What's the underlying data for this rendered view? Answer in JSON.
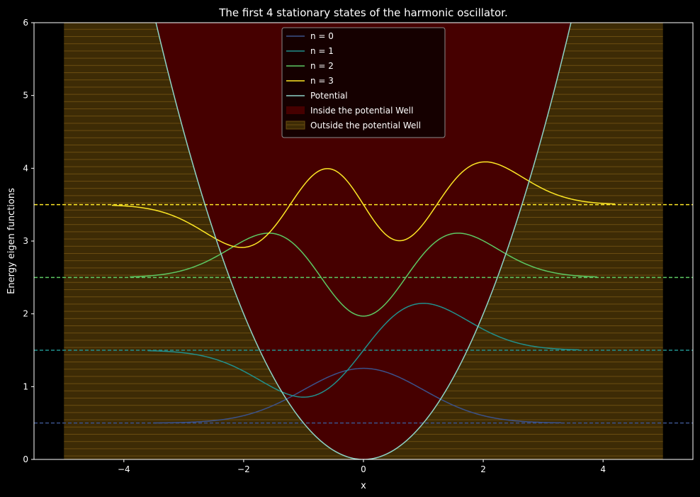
{
  "chart_data": {
    "type": "line",
    "title": "The first 4 stationary states of the harmonic oscillator.",
    "xlabel": "x",
    "ylabel": "Energy eigen functions",
    "xlim": [
      -5.5,
      5.5
    ],
    "ylim": [
      0,
      6
    ],
    "xticks": [
      -4,
      -2,
      0,
      2,
      4
    ],
    "xtick_labels": [
      "−4",
      "−2",
      "0",
      "2",
      "4"
    ],
    "yticks": [
      0,
      1,
      2,
      3,
      4,
      5,
      6
    ],
    "ytick_labels": [
      "0",
      "1",
      "2",
      "3",
      "4",
      "5",
      "6"
    ],
    "grid": false,
    "legend_placement": "upper-center",
    "background": "#000000",
    "axes_color": "#ffffff",
    "potential": {
      "name": "Potential",
      "color": "#8dd3c7",
      "formula": "x^2 / 2"
    },
    "series": [
      {
        "name": "n = 0",
        "n": 0,
        "energy": 0.5,
        "color": "#3b528b",
        "x_range": [
          -3.5,
          3.3
        ]
      },
      {
        "name": "n = 1",
        "n": 1,
        "energy": 1.5,
        "color": "#21908d",
        "x_range": [
          -3.6,
          3.6
        ]
      },
      {
        "name": "n = 2",
        "n": 2,
        "energy": 2.5,
        "color": "#5dc963",
        "x_range": [
          -3.9,
          3.9
        ]
      },
      {
        "name": "n = 3",
        "n": 3,
        "energy": 3.5,
        "color": "#fde725",
        "x_range": [
          -4.2,
          4.2
        ]
      }
    ],
    "regions": [
      {
        "name": "Inside the potential Well",
        "color": "#460000"
      },
      {
        "name": "Outside the potential Well",
        "color": "#3d2b05",
        "x_range": [
          -5,
          5
        ]
      }
    ],
    "legend": [
      {
        "label": "n = 0",
        "kind": "line",
        "color": "#3b528b"
      },
      {
        "label": "n = 1",
        "kind": "line",
        "color": "#21908d"
      },
      {
        "label": "n = 2",
        "kind": "line",
        "color": "#5dc963"
      },
      {
        "label": "n = 3",
        "kind": "line",
        "color": "#fde725"
      },
      {
        "label": "Potential",
        "kind": "line",
        "color": "#8dd3c7"
      },
      {
        "label": "Inside the potential Well",
        "kind": "patch",
        "color": "#460000"
      },
      {
        "label": "Outside the potential Well",
        "kind": "hatch",
        "color": "#3d2b05"
      }
    ]
  }
}
